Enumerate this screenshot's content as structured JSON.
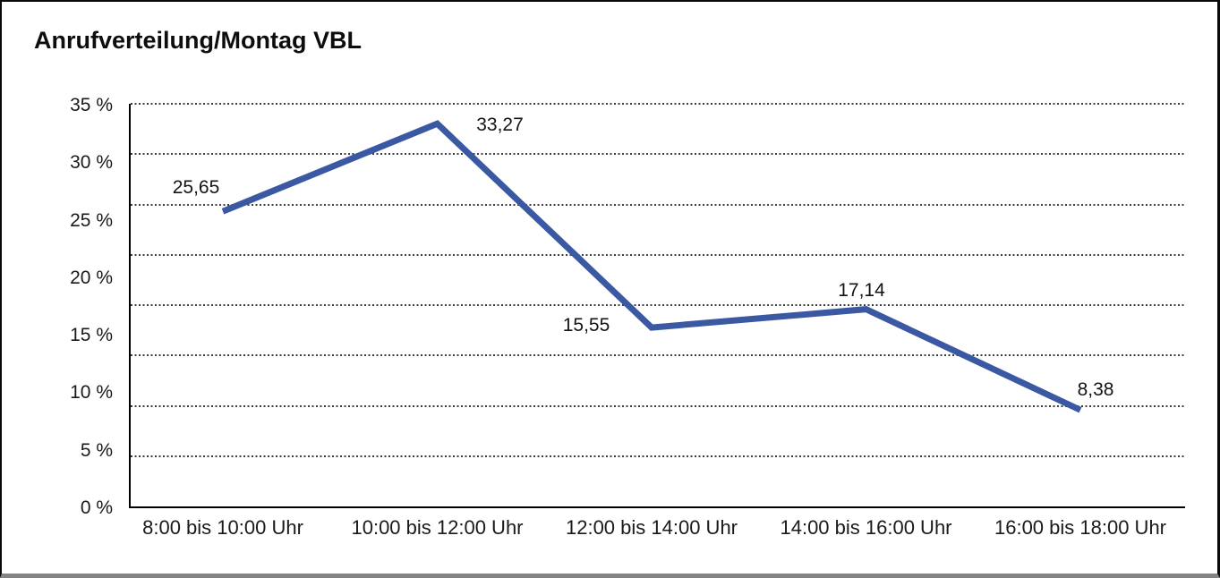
{
  "title": "Anrufverteilung/Montag VBL",
  "chart_data": {
    "type": "line",
    "title": "Anrufverteilung/Montag VBL",
    "categories": [
      "8:00 bis 10:00 Uhr",
      "10:00 bis 12:00 Uhr",
      "12:00 bis 14:00 Uhr",
      "14:00 bis 16:00 Uhr",
      "16:00 bis 18:00 Uhr"
    ],
    "series": [
      {
        "name": "Anrufverteilung Montag VBL",
        "values": [
          25.65,
          33.27,
          15.55,
          17.14,
          8.38
        ],
        "value_labels": [
          "25,65",
          "33,27",
          "15,55",
          "17,14",
          "8,38"
        ]
      }
    ],
    "xlabel": "",
    "ylabel": "",
    "ylim": [
      0,
      35
    ],
    "y_ticks": [
      {
        "label": "35 %",
        "value": 35
      },
      {
        "label": "30 %",
        "value": 30
      },
      {
        "label": "25 %",
        "value": 25
      },
      {
        "label": "20 %",
        "value": 20
      },
      {
        "label": "15 %",
        "value": 15
      },
      {
        "label": "10 %",
        "value": 10
      },
      {
        "label": "5 %",
        "value": 5
      },
      {
        "label": "0 %",
        "value": 0
      }
    ],
    "grid": "horizontal-dotted",
    "gridline_divisions": 8,
    "legend_position": "none",
    "colors": {
      "line": "#3B58A3",
      "axis": "#000000",
      "gridline_dots": "#3d3d3d",
      "text": "#1a1a1a"
    }
  }
}
